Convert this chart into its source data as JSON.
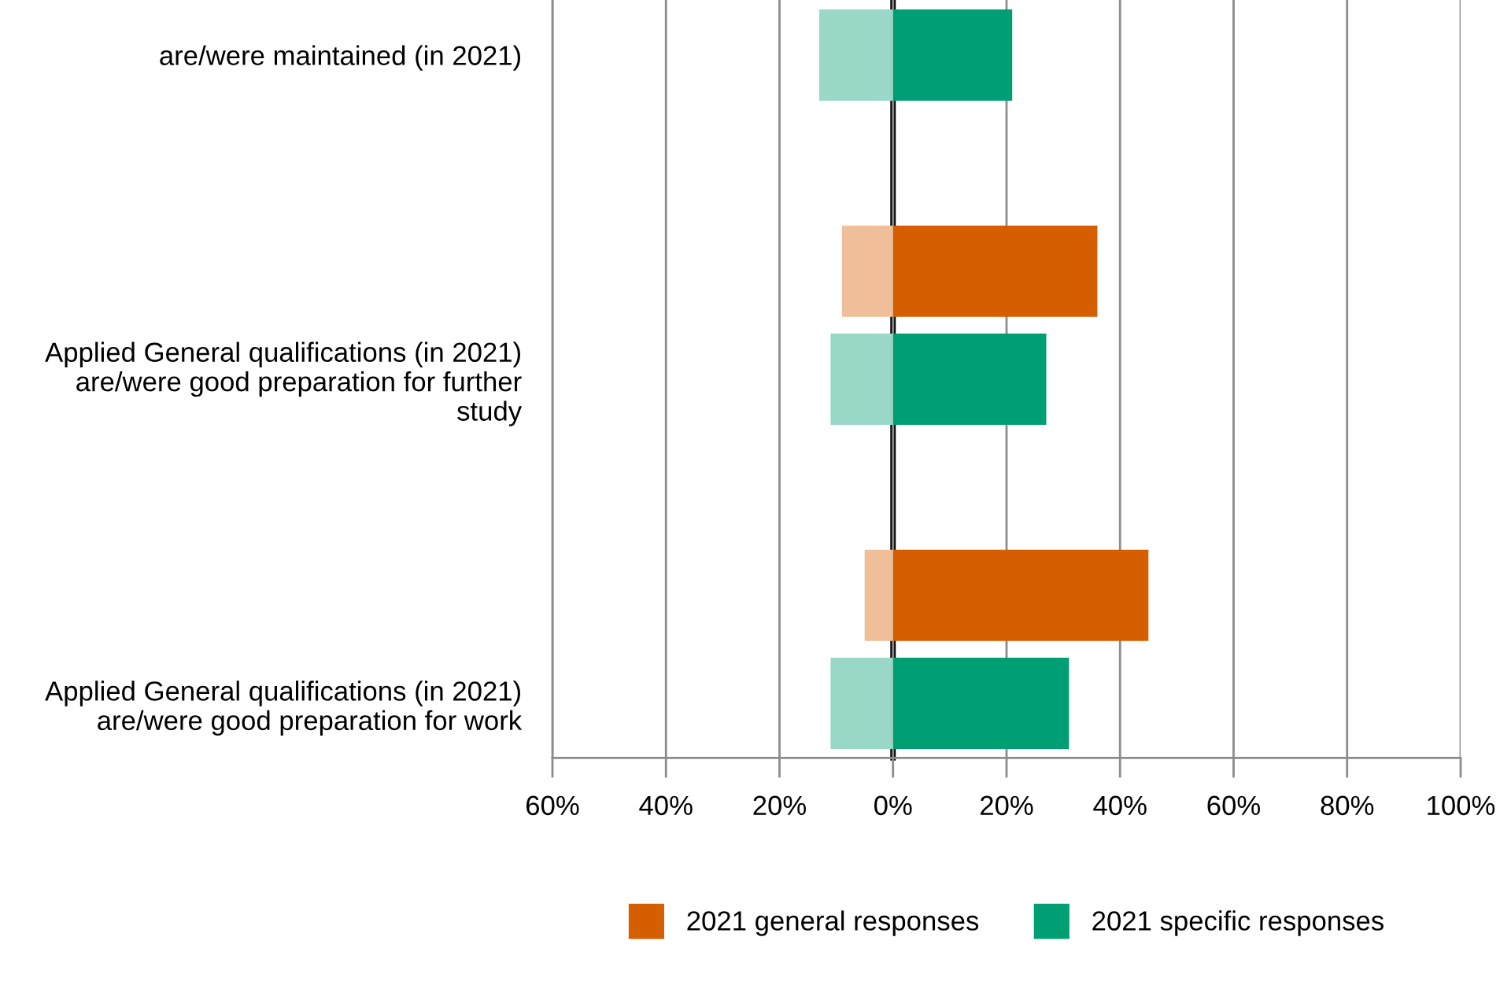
{
  "chart_data": {
    "type": "bar",
    "orientation": "horizontal",
    "stacked": true,
    "categories": [
      "are/were maintained (in 2021)",
      null,
      null,
      "Applied General qualifications (in 2021)\nare/were good preparation for further\nstudy",
      null,
      null,
      "Applied General qualifications (in 2021)\nare/were good preparation for work"
    ],
    "series": [
      {
        "name": "2021 general responses",
        "color": "#d55e00",
        "values": [
          null,
          null,
          36,
          null,
          null,
          45,
          null
        ]
      },
      {
        "color": "#eebf99",
        "values": [
          null,
          null,
          -9,
          null,
          null,
          -5,
          null
        ]
      },
      {
        "name": "2021 specific responses",
        "color": "#009e73",
        "values": [
          21,
          null,
          null,
          27,
          null,
          null,
          31
        ]
      },
      {
        "color": "#99d8c7",
        "values": [
          -13,
          null,
          null,
          -11,
          null,
          null,
          -11
        ]
      }
    ],
    "xlim": [
      -60,
      100
    ],
    "xticks": [
      {
        "value": -60,
        "label": "60%"
      },
      {
        "value": -40,
        "label": "40%"
      },
      {
        "value": -20,
        "label": "20%"
      },
      {
        "value": 0,
        "label": "0%"
      },
      {
        "value": 20,
        "label": "20%"
      },
      {
        "value": 40,
        "label": "40%"
      },
      {
        "value": 60,
        "label": "60%"
      },
      {
        "value": 80,
        "label": "80%"
      },
      {
        "value": 100,
        "label": "100%"
      }
    ],
    "grid": "x",
    "legend": "bottom"
  }
}
